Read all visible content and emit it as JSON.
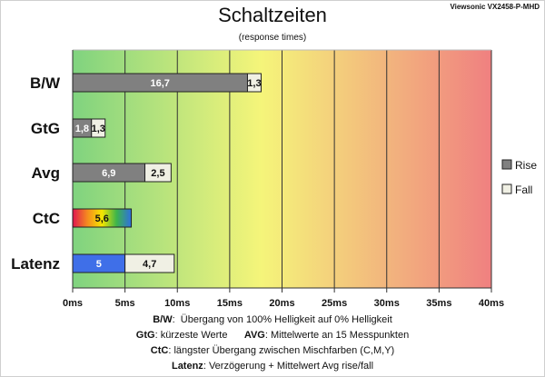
{
  "header": {
    "title": "Schaltzeiten",
    "subtitle": "(response times)",
    "model": "Viewsonic VX2458-P-MHD"
  },
  "notes": [
    {
      "key": "B/W",
      "text": "Übergang von 100% Helligkeit auf 0% Helligkeit"
    },
    {
      "key": "GtG",
      "text": "kürzeste Werte",
      "key2": "AVG",
      "text2": "Mittelwerte an 15 Messpunkten"
    },
    {
      "key": "CtC",
      "text": "längster Übergang zwischen Mischfarben (C,M,Y)"
    },
    {
      "key": "Latenz",
      "text": "Verzögerung + Mittelwert Avg rise/fall"
    }
  ],
  "chart_data": {
    "type": "bar",
    "orientation": "horizontal",
    "stacked": true,
    "categories": [
      "B/W",
      "GtG",
      "Avg",
      "CtC",
      "Latenz"
    ],
    "series": [
      {
        "name": "Rise",
        "values": [
          16.7,
          1.8,
          6.9,
          5.6,
          5
        ],
        "labels": [
          "16,7",
          "1,8",
          "6,9",
          "5,6",
          "5"
        ]
      },
      {
        "name": "Fall",
        "values": [
          1.3,
          1.3,
          2.5,
          null,
          4.7
        ],
        "labels": [
          "1,3",
          "1,3",
          "2,5",
          "",
          "4,7"
        ]
      }
    ],
    "xlim": [
      0,
      40
    ],
    "xticks": [
      0,
      5,
      10,
      15,
      20,
      25,
      30,
      35,
      40
    ],
    "xtick_labels": [
      "0ms",
      "5ms",
      "10ms",
      "15ms",
      "20ms",
      "25ms",
      "30ms",
      "35ms",
      "40ms"
    ],
    "grid": true,
    "legend_position": "right",
    "background_gradient": [
      "#7fd37f",
      "#f5f57a",
      "#f08080"
    ],
    "colors": {
      "rise": "#808080",
      "fall": "#f0f0e4",
      "latenz_rise": "#3f6fe8",
      "ctc_rainbow": [
        "#e0174f",
        "#f58a1f",
        "#f5e600",
        "#3cb44b",
        "#2f6fe0"
      ]
    }
  }
}
